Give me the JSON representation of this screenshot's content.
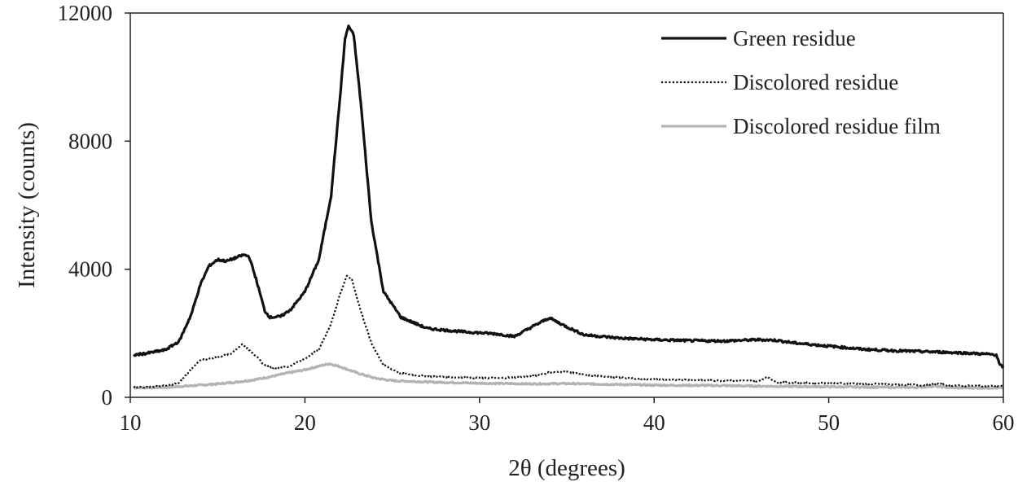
{
  "chart_data": {
    "type": "line",
    "title": "",
    "xlabel": "2θ (degrees)",
    "ylabel": "Intensity (counts)",
    "xlim": [
      10,
      60
    ],
    "ylim": [
      0,
      12000
    ],
    "x_ticks": [
      10,
      20,
      30,
      40,
      50,
      60
    ],
    "y_ticks": [
      0,
      4000,
      8000,
      12000
    ],
    "grid": false,
    "legend_position": "top-right",
    "series": [
      {
        "name": "Green residue",
        "style": "solid-thick",
        "color": "#111111",
        "points": [
          [
            10.2,
            1320
          ],
          [
            11,
            1380
          ],
          [
            12,
            1480
          ],
          [
            12.8,
            1750
          ],
          [
            13.5,
            2600
          ],
          [
            14,
            3500
          ],
          [
            14.5,
            4100
          ],
          [
            15,
            4300
          ],
          [
            15.5,
            4250
          ],
          [
            16,
            4350
          ],
          [
            16.5,
            4450
          ],
          [
            16.8,
            4400
          ],
          [
            17.2,
            3700
          ],
          [
            17.7,
            2700
          ],
          [
            18,
            2500
          ],
          [
            18.6,
            2520
          ],
          [
            19.2,
            2750
          ],
          [
            20,
            3300
          ],
          [
            20.8,
            4300
          ],
          [
            21.5,
            6300
          ],
          [
            22,
            9300
          ],
          [
            22.3,
            11200
          ],
          [
            22.5,
            11600
          ],
          [
            22.8,
            11300
          ],
          [
            23.2,
            9200
          ],
          [
            23.8,
            5500
          ],
          [
            24.5,
            3300
          ],
          [
            25.5,
            2500
          ],
          [
            27,
            2150
          ],
          [
            29,
            2050
          ],
          [
            31,
            1980
          ],
          [
            32,
            1900
          ],
          [
            33,
            2200
          ],
          [
            34,
            2480
          ],
          [
            35,
            2200
          ],
          [
            36,
            1950
          ],
          [
            38,
            1850
          ],
          [
            40,
            1800
          ],
          [
            42,
            1770
          ],
          [
            44,
            1760
          ],
          [
            46,
            1800
          ],
          [
            47,
            1780
          ],
          [
            48,
            1700
          ],
          [
            50,
            1600
          ],
          [
            52,
            1500
          ],
          [
            54,
            1450
          ],
          [
            56,
            1420
          ],
          [
            58,
            1380
          ],
          [
            59.6,
            1330
          ],
          [
            59.8,
            1000
          ],
          [
            60,
            950
          ]
        ]
      },
      {
        "name": "Discolored residue",
        "style": "dotted",
        "color": "#111111",
        "points": [
          [
            10.2,
            310
          ],
          [
            11,
            320
          ],
          [
            12,
            360
          ],
          [
            12.8,
            450
          ],
          [
            13.5,
            900
          ],
          [
            14,
            1150
          ],
          [
            15,
            1260
          ],
          [
            15.7,
            1350
          ],
          [
            16.4,
            1650
          ],
          [
            17,
            1400
          ],
          [
            17.6,
            1050
          ],
          [
            18.2,
            920
          ],
          [
            19,
            950
          ],
          [
            20,
            1200
          ],
          [
            20.8,
            1500
          ],
          [
            21.5,
            2300
          ],
          [
            22,
            3200
          ],
          [
            22.4,
            3800
          ],
          [
            22.7,
            3650
          ],
          [
            23.2,
            2700
          ],
          [
            23.8,
            1700
          ],
          [
            24.5,
            1000
          ],
          [
            25.5,
            750
          ],
          [
            27,
            650
          ],
          [
            29,
            620
          ],
          [
            31,
            600
          ],
          [
            33,
            650
          ],
          [
            34,
            780
          ],
          [
            35,
            800
          ],
          [
            36,
            700
          ],
          [
            38,
            620
          ],
          [
            40,
            560
          ],
          [
            42,
            540
          ],
          [
            44,
            520
          ],
          [
            46,
            510
          ],
          [
            46.5,
            640
          ],
          [
            47,
            470
          ],
          [
            50,
            440
          ],
          [
            52,
            420
          ],
          [
            54,
            400
          ],
          [
            55.5,
            380
          ],
          [
            56,
            430
          ],
          [
            57,
            370
          ],
          [
            58,
            360
          ],
          [
            60,
            350
          ]
        ]
      },
      {
        "name": "Discolored residue film",
        "style": "solid-gray",
        "color": "#b3b3b3",
        "points": [
          [
            10.2,
            300
          ],
          [
            12,
            310
          ],
          [
            14,
            380
          ],
          [
            15,
            420
          ],
          [
            16,
            470
          ],
          [
            17,
            540
          ],
          [
            18,
            640
          ],
          [
            19,
            760
          ],
          [
            20,
            860
          ],
          [
            21,
            1000
          ],
          [
            21.4,
            1050
          ],
          [
            22,
            960
          ],
          [
            23,
            760
          ],
          [
            24,
            600
          ],
          [
            25,
            520
          ],
          [
            27,
            480
          ],
          [
            30,
            440
          ],
          [
            33,
            420
          ],
          [
            35,
            430
          ],
          [
            38,
            400
          ],
          [
            40,
            380
          ],
          [
            43,
            370
          ],
          [
            46,
            350
          ],
          [
            50,
            330
          ],
          [
            55,
            310
          ],
          [
            56,
            350
          ],
          [
            57,
            300
          ],
          [
            60,
            290
          ]
        ]
      }
    ]
  }
}
